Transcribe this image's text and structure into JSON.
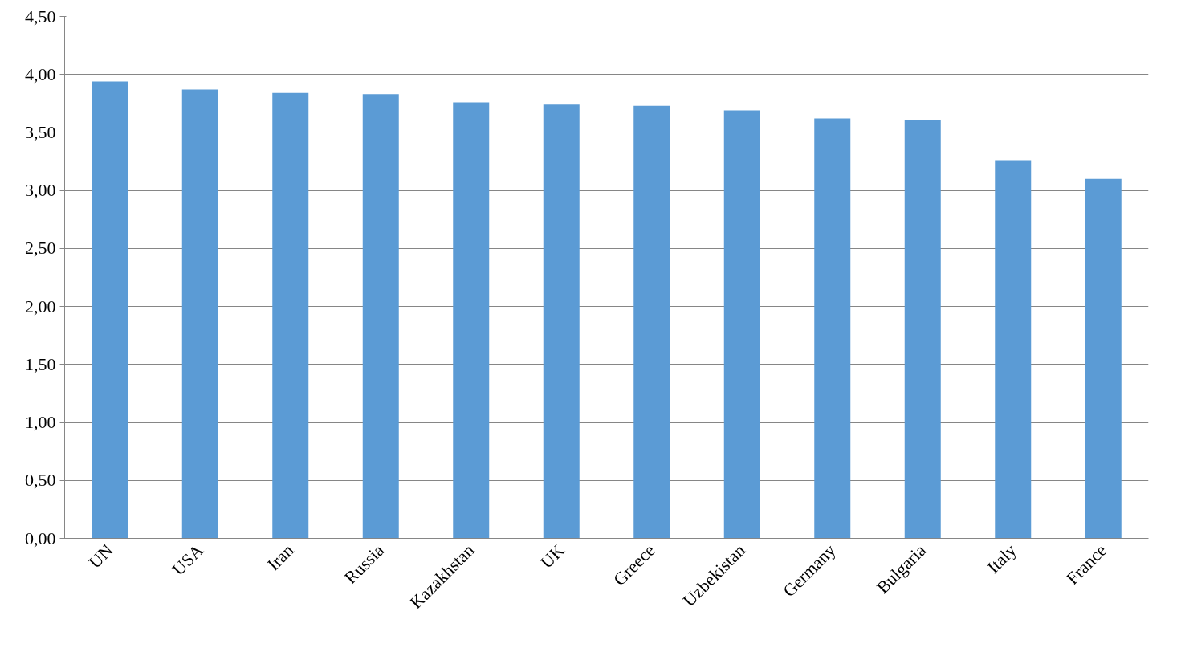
{
  "chart_data": {
    "type": "bar",
    "categories": [
      "UN",
      "USA",
      "Iran",
      "Russia",
      "Kazakhstan",
      "UK",
      "Greece",
      "Uzbekistan",
      "Germany",
      "Bulgaria",
      "Italy",
      "France"
    ],
    "values": [
      3.94,
      3.87,
      3.84,
      3.83,
      3.76,
      3.74,
      3.73,
      3.69,
      3.62,
      3.61,
      3.26,
      3.1
    ],
    "color": "#5b9bd5",
    "ylim": [
      0,
      4.5
    ],
    "yticks": [
      {
        "value": 0,
        "label": "0,00"
      },
      {
        "value": 0.5,
        "label": "0,50"
      },
      {
        "value": 1,
        "label": "1,00"
      },
      {
        "value": 1.5,
        "label": "1,50"
      },
      {
        "value": 2,
        "label": "2,00"
      },
      {
        "value": 2.5,
        "label": "2,50"
      },
      {
        "value": 3,
        "label": "3,00"
      },
      {
        "value": 3.5,
        "label": "3,50"
      },
      {
        "value": 4,
        "label": "4,00"
      },
      {
        "value": 4.5,
        "label": "4,50"
      }
    ],
    "grid": "y"
  }
}
